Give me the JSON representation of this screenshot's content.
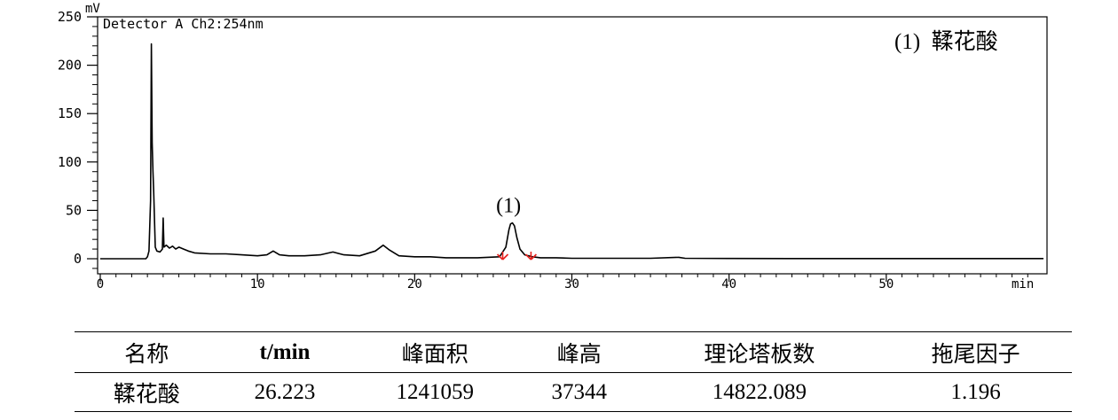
{
  "chart_data": {
    "type": "line",
    "detector_label": "Detector A Ch2:254nm",
    "y_unit": "mV",
    "x_unit": "min",
    "xlim": [
      0,
      60
    ],
    "ylim": [
      -10,
      250
    ],
    "x_ticks": [
      0,
      10,
      20,
      30,
      40,
      50
    ],
    "y_ticks": [
      0,
      50,
      100,
      150,
      200,
      250
    ],
    "legend_text": "(1)  鞣花酸",
    "peak_label": {
      "text": "(1)",
      "x": 26.2,
      "y": 37
    },
    "integration_marks": [
      25.6,
      27.4
    ],
    "x": [
      0,
      2.9,
      3.0,
      3.1,
      3.2,
      3.25,
      3.3,
      3.35,
      3.4,
      3.5,
      3.6,
      3.8,
      3.95,
      4.0,
      4.05,
      4.2,
      4.4,
      4.6,
      4.8,
      5.0,
      5.3,
      5.6,
      6.0,
      7,
      8,
      9,
      10,
      10.6,
      11.0,
      11.4,
      12,
      13,
      14,
      14.8,
      15.5,
      16.5,
      17.5,
      18.0,
      18.4,
      19,
      20,
      21,
      22,
      24,
      25.4,
      25.8,
      26.0,
      26.1,
      26.22,
      26.35,
      26.5,
      26.7,
      27.0,
      27.5,
      28,
      29,
      30,
      35,
      36.8,
      37.2,
      40,
      45,
      49,
      50,
      55,
      60
    ],
    "y": [
      0,
      0,
      2,
      8,
      60,
      222,
      120,
      90,
      70,
      12,
      8,
      7,
      10,
      42,
      12,
      14,
      11,
      13,
      10,
      12,
      10,
      8,
      6,
      5,
      5,
      4,
      3,
      4,
      8,
      4,
      3,
      3,
      4,
      7,
      4,
      3,
      8,
      14,
      9,
      3,
      2,
      2,
      1,
      1,
      2,
      12,
      30,
      36,
      37,
      34,
      22,
      10,
      4,
      2,
      1,
      1,
      0.5,
      0.5,
      1.5,
      0.5,
      0.3,
      0.2,
      0.2,
      0.2,
      0.2,
      0.2
    ]
  },
  "table": {
    "headers": [
      "名称",
      "t/min",
      "峰面积",
      "峰高",
      "理论塔板数",
      "拖尾因子"
    ],
    "rows": [
      [
        "鞣花酸",
        "26.223",
        "1241059",
        "37344",
        "14822.089",
        "1.196"
      ]
    ]
  }
}
